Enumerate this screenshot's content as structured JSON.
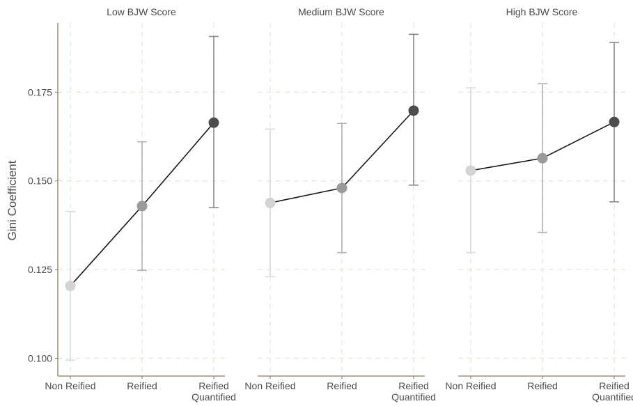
{
  "chart_data": {
    "type": "line",
    "ylabel": "Gini Coefficient",
    "ylim": [
      0.095,
      0.1945
    ],
    "yticks": [
      "0.100",
      "0.125",
      "0.150",
      "0.175"
    ],
    "grid": true,
    "categories": [
      {
        "lines": [
          "Non Reified"
        ]
      },
      {
        "lines": [
          "Reified"
        ]
      },
      {
        "lines": [
          "Reified",
          "Quantified"
        ]
      }
    ],
    "point_colors": [
      "#d3d3d3",
      "#9a9a9a",
      "#4d4d4d"
    ],
    "errorbar_colors": [
      "#d9d9d9",
      "#b0b0b0",
      "#8a8a8a"
    ],
    "panels": [
      {
        "title": "Low BJW Score",
        "values": [
          0.1204,
          0.1429,
          0.1664
        ],
        "lower": [
          0.0995,
          0.1248,
          0.1425
        ],
        "upper": [
          0.1414,
          0.161,
          0.1907
        ]
      },
      {
        "title": "Medium BJW Score",
        "values": [
          0.1438,
          0.148,
          0.1698
        ],
        "lower": [
          0.123,
          0.1298,
          0.1488
        ],
        "upper": [
          0.1646,
          0.1662,
          0.1913
        ]
      },
      {
        "title": "High BJW Score",
        "values": [
          0.1529,
          0.1564,
          0.1666
        ],
        "lower": [
          0.1298,
          0.1355,
          0.1441
        ],
        "upper": [
          0.1762,
          0.1774,
          0.189
        ]
      }
    ]
  }
}
